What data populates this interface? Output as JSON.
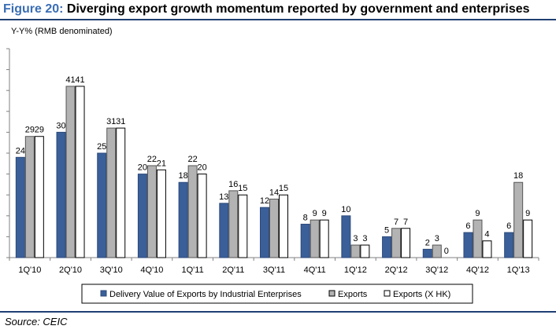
{
  "figure": {
    "label": "Figure 20:",
    "title": "Diverging export growth momentum reported by government and enterprises",
    "unit": "Y-Y% (RMB denominated)",
    "source": "Source: CEIC"
  },
  "colors": {
    "accent": "#1f3f73",
    "figure_label": "#3a6db4",
    "series": [
      "#3a5f99",
      "#b3b3b3",
      "#ffffff"
    ]
  },
  "chart_data": {
    "type": "bar",
    "categories": [
      "1Q'10",
      "2Q'10",
      "3Q'10",
      "4Q'10",
      "1Q'11",
      "2Q'11",
      "3Q'11",
      "4Q'11",
      "1Q'12",
      "2Q'12",
      "3Q'12",
      "4Q'12",
      "1Q'13"
    ],
    "series": [
      {
        "name": "Delivery Value of Exports by Industrial Enterprises",
        "values": [
          24,
          30,
          25,
          20,
          18,
          13,
          12,
          8,
          10,
          5,
          2,
          6,
          6
        ]
      },
      {
        "name": "Exports",
        "values": [
          29,
          41,
          31,
          22,
          22,
          16,
          14,
          9,
          3,
          7,
          3,
          9,
          18
        ]
      },
      {
        "name": "Exports (X HK)",
        "values": [
          29,
          41,
          31,
          21,
          20,
          15,
          15,
          9,
          3,
          7,
          0,
          4,
          9
        ]
      }
    ],
    "ylim": [
      0,
      50
    ],
    "grid": false,
    "legend": "bottom"
  }
}
